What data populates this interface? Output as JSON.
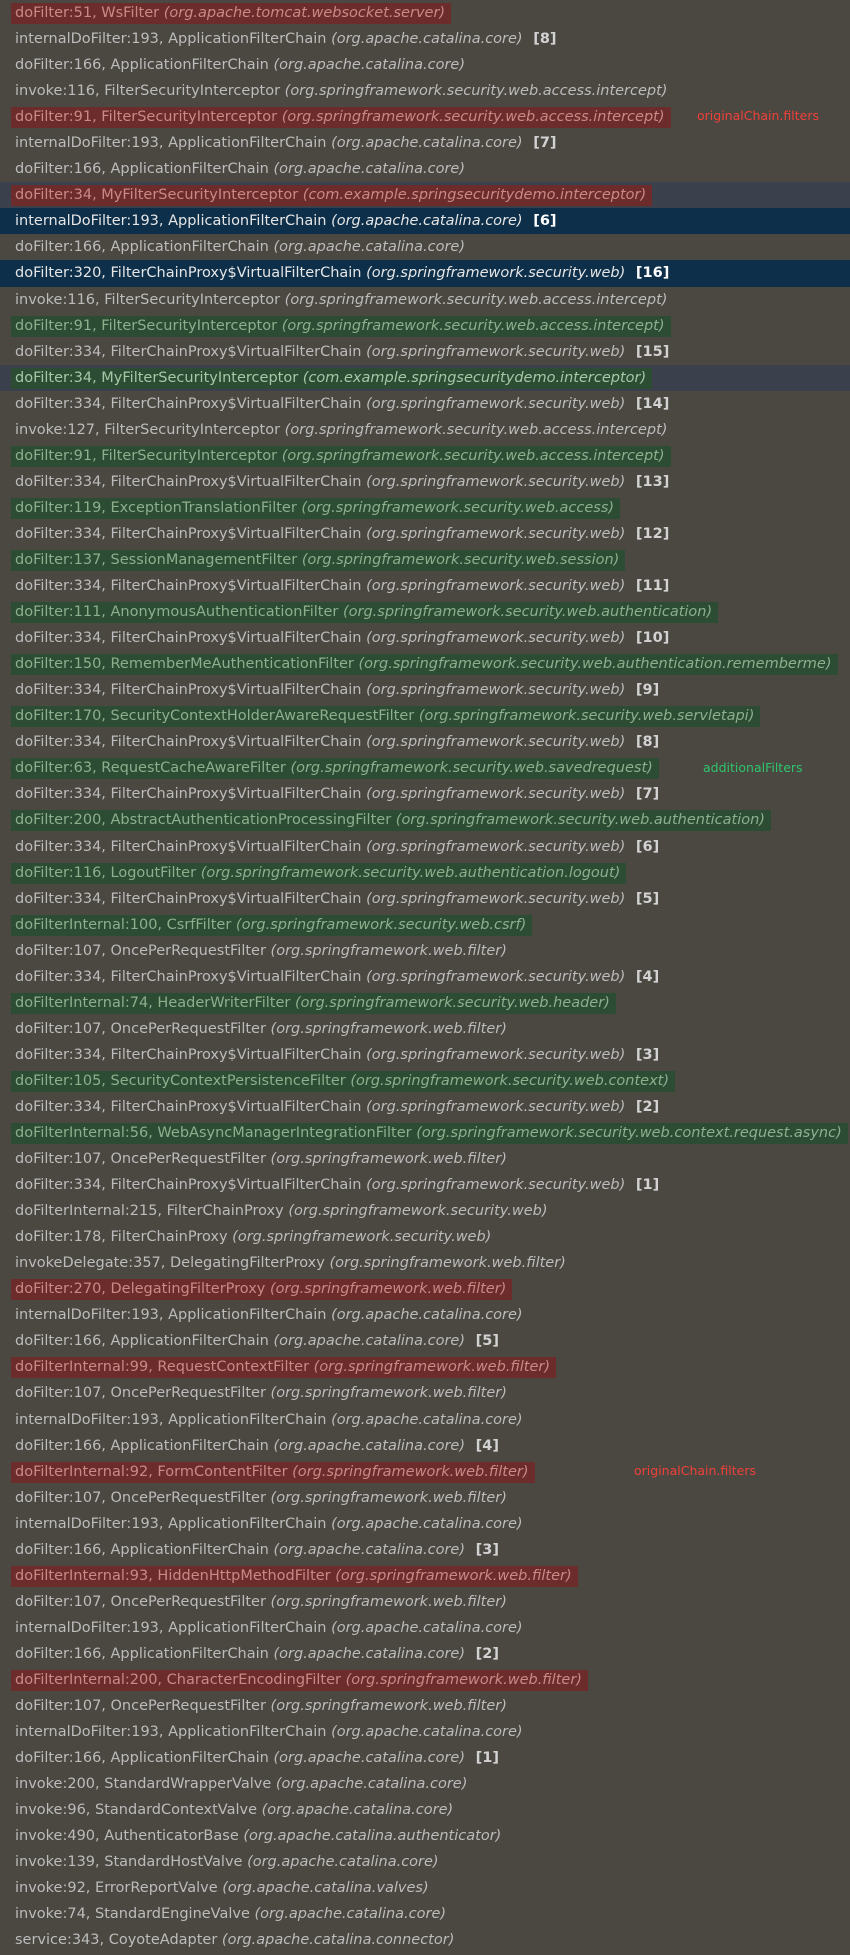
{
  "colors": {
    "background": "#4b4841",
    "highlight_red": "#6c2c2b",
    "highlight_green": "#2c4d34",
    "selected_blue": "#0d2f4a",
    "selected_gray": "#3b414c",
    "note_red": "#f0403a",
    "note_green": "#2ec46d"
  },
  "annotations": [
    {
      "text": "originalChain.filters",
      "color": "red",
      "row": 4
    },
    {
      "text": "additionalFilters",
      "color": "green",
      "row": 29
    },
    {
      "text": "originalChain.filters",
      "color": "red",
      "row": 56
    }
  ],
  "frames": [
    {
      "method": "doFilter:51, WsFilter",
      "pkg": "(org.apache.tomcat.websocket.server)",
      "count": "",
      "style": "hl-red"
    },
    {
      "method": "internalDoFilter:193, ApplicationFilterChain",
      "pkg": "(org.apache.catalina.core)",
      "count": "[8]",
      "style": ""
    },
    {
      "method": "doFilter:166, ApplicationFilterChain",
      "pkg": "(org.apache.catalina.core)",
      "count": "",
      "style": ""
    },
    {
      "method": "invoke:116, FilterSecurityInterceptor",
      "pkg": "(org.springframework.security.web.access.intercept)",
      "count": "",
      "style": ""
    },
    {
      "method": "doFilter:91, FilterSecurityInterceptor",
      "pkg": "(org.springframework.security.web.access.intercept)",
      "count": "",
      "style": "hl-red"
    },
    {
      "method": "internalDoFilter:193, ApplicationFilterChain",
      "pkg": "(org.apache.catalina.core)",
      "count": "[7]",
      "style": ""
    },
    {
      "method": "doFilter:166, ApplicationFilterChain",
      "pkg": "(org.apache.catalina.core)",
      "count": "",
      "style": ""
    },
    {
      "method": "doFilter:34, MyFilterSecurityInterceptor",
      "pkg": "(com.example.springsecuritydemo.interceptor)",
      "count": "",
      "style": "sel-dark"
    },
    {
      "method": "internalDoFilter:193, ApplicationFilterChain",
      "pkg": "(org.apache.catalina.core)",
      "count": "[6]",
      "style": "sel-blue"
    },
    {
      "method": "doFilter:166, ApplicationFilterChain",
      "pkg": "(org.apache.catalina.core)",
      "count": "",
      "style": ""
    },
    {
      "method": "doFilter:320, FilterChainProxy$VirtualFilterChain",
      "pkg": "(org.springframework.security.web)",
      "count": "[16]",
      "style": "sel-blue"
    },
    {
      "method": "invoke:116, FilterSecurityInterceptor",
      "pkg": "(org.springframework.security.web.access.intercept)",
      "count": "",
      "style": ""
    },
    {
      "method": "doFilter:91, FilterSecurityInterceptor",
      "pkg": "(org.springframework.security.web.access.intercept)",
      "count": "",
      "style": "hl-green"
    },
    {
      "method": "doFilter:334, FilterChainProxy$VirtualFilterChain",
      "pkg": "(org.springframework.security.web)",
      "count": "[15]",
      "style": ""
    },
    {
      "method": "doFilter:34, MyFilterSecurityInterceptor",
      "pkg": "(com.example.springsecuritydemo.interceptor)",
      "count": "",
      "style": "sel-dark-green"
    },
    {
      "method": "doFilter:334, FilterChainProxy$VirtualFilterChain",
      "pkg": "(org.springframework.security.web)",
      "count": "[14]",
      "style": ""
    },
    {
      "method": "invoke:127, FilterSecurityInterceptor",
      "pkg": "(org.springframework.security.web.access.intercept)",
      "count": "",
      "style": ""
    },
    {
      "method": "doFilter:91, FilterSecurityInterceptor",
      "pkg": "(org.springframework.security.web.access.intercept)",
      "count": "",
      "style": "hl-green"
    },
    {
      "method": "doFilter:334, FilterChainProxy$VirtualFilterChain",
      "pkg": "(org.springframework.security.web)",
      "count": "[13]",
      "style": ""
    },
    {
      "method": "doFilter:119, ExceptionTranslationFilter",
      "pkg": "(org.springframework.security.web.access)",
      "count": "",
      "style": "hl-green"
    },
    {
      "method": "doFilter:334, FilterChainProxy$VirtualFilterChain",
      "pkg": "(org.springframework.security.web)",
      "count": "[12]",
      "style": ""
    },
    {
      "method": "doFilter:137, SessionManagementFilter",
      "pkg": "(org.springframework.security.web.session)",
      "count": "",
      "style": "hl-green"
    },
    {
      "method": "doFilter:334, FilterChainProxy$VirtualFilterChain",
      "pkg": "(org.springframework.security.web)",
      "count": "[11]",
      "style": ""
    },
    {
      "method": "doFilter:111, AnonymousAuthenticationFilter",
      "pkg": "(org.springframework.security.web.authentication)",
      "count": "",
      "style": "hl-green"
    },
    {
      "method": "doFilter:334, FilterChainProxy$VirtualFilterChain",
      "pkg": "(org.springframework.security.web)",
      "count": "[10]",
      "style": ""
    },
    {
      "method": "doFilter:150, RememberMeAuthenticationFilter",
      "pkg": "(org.springframework.security.web.authentication.rememberme)",
      "count": "",
      "style": "hl-green"
    },
    {
      "method": "doFilter:334, FilterChainProxy$VirtualFilterChain",
      "pkg": "(org.springframework.security.web)",
      "count": "[9]",
      "style": ""
    },
    {
      "method": "doFilter:170, SecurityContextHolderAwareRequestFilter",
      "pkg": "(org.springframework.security.web.servletapi)",
      "count": "",
      "style": "hl-green"
    },
    {
      "method": "doFilter:334, FilterChainProxy$VirtualFilterChain",
      "pkg": "(org.springframework.security.web)",
      "count": "[8]",
      "style": ""
    },
    {
      "method": "doFilter:63, RequestCacheAwareFilter",
      "pkg": "(org.springframework.security.web.savedrequest)",
      "count": "",
      "style": "hl-green"
    },
    {
      "method": "doFilter:334, FilterChainProxy$VirtualFilterChain",
      "pkg": "(org.springframework.security.web)",
      "count": "[7]",
      "style": ""
    },
    {
      "method": "doFilter:200, AbstractAuthenticationProcessingFilter",
      "pkg": "(org.springframework.security.web.authentication)",
      "count": "",
      "style": "hl-green"
    },
    {
      "method": "doFilter:334, FilterChainProxy$VirtualFilterChain",
      "pkg": "(org.springframework.security.web)",
      "count": "[6]",
      "style": ""
    },
    {
      "method": "doFilter:116, LogoutFilter",
      "pkg": "(org.springframework.security.web.authentication.logout)",
      "count": "",
      "style": "hl-green"
    },
    {
      "method": "doFilter:334, FilterChainProxy$VirtualFilterChain",
      "pkg": "(org.springframework.security.web)",
      "count": "[5]",
      "style": ""
    },
    {
      "method": "doFilterInternal:100, CsrfFilter",
      "pkg": "(org.springframework.security.web.csrf)",
      "count": "",
      "style": "hl-green"
    },
    {
      "method": "doFilter:107, OncePerRequestFilter",
      "pkg": "(org.springframework.web.filter)",
      "count": "",
      "style": ""
    },
    {
      "method": "doFilter:334, FilterChainProxy$VirtualFilterChain",
      "pkg": "(org.springframework.security.web)",
      "count": "[4]",
      "style": ""
    },
    {
      "method": "doFilterInternal:74, HeaderWriterFilter",
      "pkg": "(org.springframework.security.web.header)",
      "count": "",
      "style": "hl-green"
    },
    {
      "method": "doFilter:107, OncePerRequestFilter",
      "pkg": "(org.springframework.web.filter)",
      "count": "",
      "style": ""
    },
    {
      "method": "doFilter:334, FilterChainProxy$VirtualFilterChain",
      "pkg": "(org.springframework.security.web)",
      "count": "[3]",
      "style": ""
    },
    {
      "method": "doFilter:105, SecurityContextPersistenceFilter",
      "pkg": "(org.springframework.security.web.context)",
      "count": "",
      "style": "hl-green"
    },
    {
      "method": "doFilter:334, FilterChainProxy$VirtualFilterChain",
      "pkg": "(org.springframework.security.web)",
      "count": "[2]",
      "style": ""
    },
    {
      "method": "doFilterInternal:56, WebAsyncManagerIntegrationFilter",
      "pkg": "(org.springframework.security.web.context.request.async)",
      "count": "",
      "style": "hl-green"
    },
    {
      "method": "doFilter:107, OncePerRequestFilter",
      "pkg": "(org.springframework.web.filter)",
      "count": "",
      "style": ""
    },
    {
      "method": "doFilter:334, FilterChainProxy$VirtualFilterChain",
      "pkg": "(org.springframework.security.web)",
      "count": "[1]",
      "style": ""
    },
    {
      "method": "doFilterInternal:215, FilterChainProxy",
      "pkg": "(org.springframework.security.web)",
      "count": "",
      "style": ""
    },
    {
      "method": "doFilter:178, FilterChainProxy",
      "pkg": "(org.springframework.security.web)",
      "count": "",
      "style": ""
    },
    {
      "method": "invokeDelegate:357, DelegatingFilterProxy",
      "pkg": "(org.springframework.web.filter)",
      "count": "",
      "style": ""
    },
    {
      "method": "doFilter:270, DelegatingFilterProxy",
      "pkg": "(org.springframework.web.filter)",
      "count": "",
      "style": "hl-red"
    },
    {
      "method": "internalDoFilter:193, ApplicationFilterChain",
      "pkg": "(org.apache.catalina.core)",
      "count": "",
      "style": ""
    },
    {
      "method": "doFilter:166, ApplicationFilterChain",
      "pkg": "(org.apache.catalina.core)",
      "count": "[5]",
      "style": ""
    },
    {
      "method": "doFilterInternal:99, RequestContextFilter",
      "pkg": "(org.springframework.web.filter)",
      "count": "",
      "style": "hl-red"
    },
    {
      "method": "doFilter:107, OncePerRequestFilter",
      "pkg": "(org.springframework.web.filter)",
      "count": "",
      "style": ""
    },
    {
      "method": "internalDoFilter:193, ApplicationFilterChain",
      "pkg": "(org.apache.catalina.core)",
      "count": "",
      "style": ""
    },
    {
      "method": "doFilter:166, ApplicationFilterChain",
      "pkg": "(org.apache.catalina.core)",
      "count": "[4]",
      "style": ""
    },
    {
      "method": "doFilterInternal:92, FormContentFilter",
      "pkg": "(org.springframework.web.filter)",
      "count": "",
      "style": "hl-red"
    },
    {
      "method": "doFilter:107, OncePerRequestFilter",
      "pkg": "(org.springframework.web.filter)",
      "count": "",
      "style": ""
    },
    {
      "method": "internalDoFilter:193, ApplicationFilterChain",
      "pkg": "(org.apache.catalina.core)",
      "count": "",
      "style": ""
    },
    {
      "method": "doFilter:166, ApplicationFilterChain",
      "pkg": "(org.apache.catalina.core)",
      "count": "[3]",
      "style": ""
    },
    {
      "method": "doFilterInternal:93, HiddenHttpMethodFilter",
      "pkg": "(org.springframework.web.filter)",
      "count": "",
      "style": "hl-red"
    },
    {
      "method": "doFilter:107, OncePerRequestFilter",
      "pkg": "(org.springframework.web.filter)",
      "count": "",
      "style": ""
    },
    {
      "method": "internalDoFilter:193, ApplicationFilterChain",
      "pkg": "(org.apache.catalina.core)",
      "count": "",
      "style": ""
    },
    {
      "method": "doFilter:166, ApplicationFilterChain",
      "pkg": "(org.apache.catalina.core)",
      "count": "[2]",
      "style": ""
    },
    {
      "method": "doFilterInternal:200, CharacterEncodingFilter",
      "pkg": "(org.springframework.web.filter)",
      "count": "",
      "style": "hl-red"
    },
    {
      "method": "doFilter:107, OncePerRequestFilter",
      "pkg": "(org.springframework.web.filter)",
      "count": "",
      "style": ""
    },
    {
      "method": "internalDoFilter:193, ApplicationFilterChain",
      "pkg": "(org.apache.catalina.core)",
      "count": "",
      "style": ""
    },
    {
      "method": "doFilter:166, ApplicationFilterChain",
      "pkg": "(org.apache.catalina.core)",
      "count": "[1]",
      "style": ""
    },
    {
      "method": "invoke:200, StandardWrapperValve",
      "pkg": "(org.apache.catalina.core)",
      "count": "",
      "style": ""
    },
    {
      "method": "invoke:96, StandardContextValve",
      "pkg": "(org.apache.catalina.core)",
      "count": "",
      "style": ""
    },
    {
      "method": "invoke:490, AuthenticatorBase",
      "pkg": "(org.apache.catalina.authenticator)",
      "count": "",
      "style": ""
    },
    {
      "method": "invoke:139, StandardHostValve",
      "pkg": "(org.apache.catalina.core)",
      "count": "",
      "style": ""
    },
    {
      "method": "invoke:92, ErrorReportValve",
      "pkg": "(org.apache.catalina.valves)",
      "count": "",
      "style": ""
    },
    {
      "method": "invoke:74, StandardEngineValve",
      "pkg": "(org.apache.catalina.core)",
      "count": "",
      "style": ""
    },
    {
      "method": "service:343, CoyoteAdapter",
      "pkg": "(org.apache.catalina.connector)",
      "count": "",
      "style": ""
    }
  ]
}
